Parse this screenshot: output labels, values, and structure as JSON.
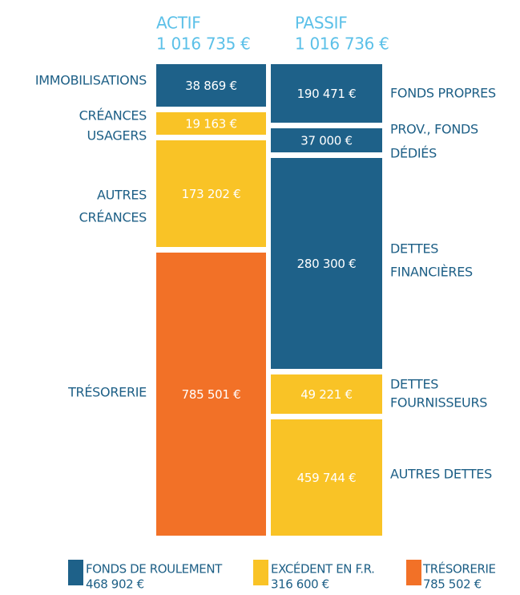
{
  "columns": [
    {
      "title": "ACTIF",
      "total": "1 016 735 €",
      "items": [
        {
          "label": [
            "IMMOBILISATIONS"
          ],
          "value": "38 869 €",
          "color": "#1e6189"
        },
        {
          "label": [
            "CRÉANCES",
            "USAGERS"
          ],
          "value": "19 163 €",
          "color": "#f9c326"
        },
        {
          "label": [
            "AUTRES",
            "CRÉANCES"
          ],
          "value": "173 202 €",
          "color": "#f9c326"
        },
        {
          "label": [
            "TRÉSORERIE"
          ],
          "value": "785 501 €",
          "color": "#f27127"
        }
      ]
    },
    {
      "title": "PASSIF",
      "total": "1 016 736 €",
      "items": [
        {
          "label": [
            "FONDS PROPRES"
          ],
          "value": "190 471 €",
          "color": "#1e6189"
        },
        {
          "label": [
            "PROV., FONDS",
            "DÉDIÉS"
          ],
          "value": "37 000 €",
          "color": "#1e6189"
        },
        {
          "label": [
            "DETTES",
            "FINANCIÈRES"
          ],
          "value": "280 300 €",
          "color": "#1e6189"
        },
        {
          "label": [
            "DETTES",
            "FOURNISSEURS"
          ],
          "value": "49 221 €",
          "color": "#f9c326"
        },
        {
          "label": [
            "AUTRES DETTES"
          ],
          "value": "459 744 €",
          "color": "#f9c326"
        }
      ]
    }
  ],
  "legend": [
    {
      "label": "FONDS DE ROULEMENT",
      "value": "468 902 €",
      "color": "#1e6189"
    },
    {
      "label": "EXCÉDENT EN F.R.",
      "value": "316 600 €",
      "color": "#f9c326"
    },
    {
      "label": "TRÉSORERIE",
      "value": "785 502 €",
      "color": "#f27127"
    }
  ]
}
